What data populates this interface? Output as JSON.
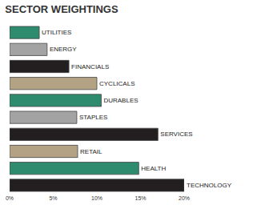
{
  "chart_data": {
    "type": "bar",
    "orientation": "horizontal",
    "title": "SECTOR WEIGHTINGS",
    "categories": [
      "UTILITIES",
      "ENERGY",
      "FINANCIALS",
      "CYCLICALS",
      "DURABLES",
      "STAPLES",
      "SERVICES",
      "RETAIL",
      "HEALTH",
      "TECHNOLOGY"
    ],
    "values": [
      3.4,
      4.3,
      6.8,
      10,
      10.5,
      7.7,
      17,
      7.8,
      14.8,
      20
    ],
    "colors": [
      "#2e8b6e",
      "#a3a3a3",
      "#231f20",
      "#b3a384",
      "#2e8b6e",
      "#a3a3a3",
      "#231f20",
      "#b3a384",
      "#2e8b6e",
      "#231f20"
    ],
    "xlim": [
      0,
      20
    ],
    "xticks": [
      {
        "value": 0,
        "label": "0%"
      },
      {
        "value": 5,
        "label": "5%"
      },
      {
        "value": 10,
        "label": "10%"
      },
      {
        "value": 15,
        "label": "15%"
      },
      {
        "value": 20,
        "label": "20%"
      }
    ],
    "grid": false,
    "tick_labels": "x"
  }
}
